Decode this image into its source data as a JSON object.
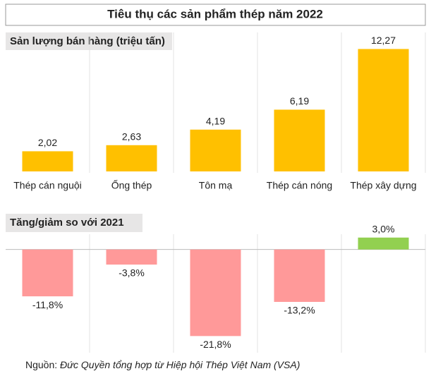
{
  "title": "Tiêu thụ các sản phẩm thép năm 2022",
  "chart_data": [
    {
      "type": "bar",
      "title": "Sản lượng bán hàng (triệu tấn)",
      "categories": [
        "Thép cán nguội",
        "Ống thép",
        "Tôn mạ",
        "Thép cán nóng",
        "Thép xây dựng"
      ],
      "values": [
        2.02,
        2.63,
        4.19,
        6.19,
        12.27
      ],
      "value_labels": [
        "2,02",
        "2,63",
        "4,19",
        "6,19",
        "12,27"
      ],
      "colors": [
        "#ffc000",
        "#ffc000",
        "#ffc000",
        "#ffc000",
        "#ffc000"
      ],
      "ylim": [
        0,
        14
      ]
    },
    {
      "type": "bar",
      "title": "Tăng/giảm so với 2021",
      "values": [
        -11.8,
        -3.8,
        -21.8,
        -13.2,
        3.0
      ],
      "value_labels": [
        "-11,8%",
        "-3,8%",
        "-21,8%",
        "-13,2%",
        "3,0%"
      ],
      "colors": [
        "#ff9999",
        "#ff9999",
        "#ff9999",
        "#ff9999",
        "#92d050"
      ],
      "ylim": [
        -26,
        9
      ]
    }
  ],
  "source": {
    "label": "Nguồn:",
    "text": "Đức Quyền tổng hợp từ Hiệp hội Thép Việt Nam (VSA)"
  }
}
